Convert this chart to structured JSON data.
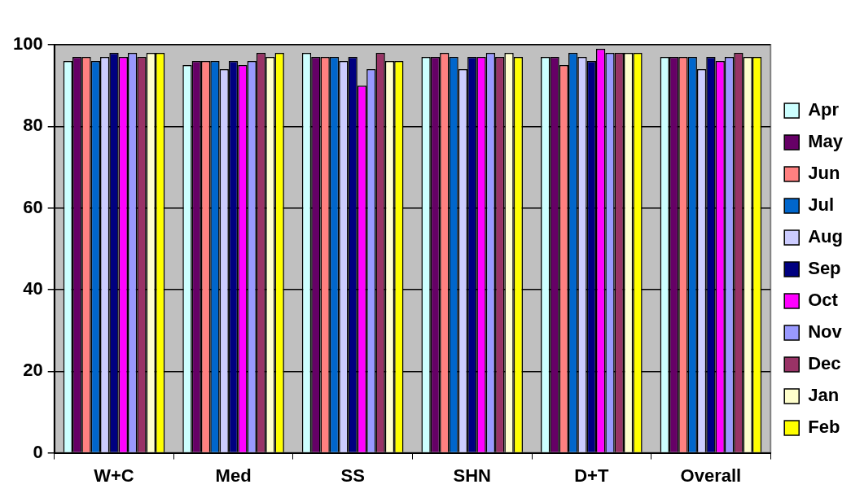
{
  "chart_data": {
    "type": "bar",
    "categories": [
      "W+C",
      "Med",
      "SS",
      "SHN",
      "D+T",
      "Overall"
    ],
    "series": [
      {
        "name": "Apr",
        "color": "#ccffff",
        "values": [
          96,
          95,
          98,
          97,
          97,
          97
        ]
      },
      {
        "name": "May",
        "color": "#660066",
        "values": [
          97,
          96,
          97,
          97,
          97,
          97
        ]
      },
      {
        "name": "Jun",
        "color": "#ff8080",
        "values": [
          97,
          96,
          97,
          98,
          95,
          97
        ]
      },
      {
        "name": "Jul",
        "color": "#0066cc",
        "values": [
          96,
          96,
          97,
          97,
          98,
          97
        ]
      },
      {
        "name": "Aug",
        "color": "#ccccff",
        "values": [
          97,
          94,
          96,
          94,
          97,
          94
        ]
      },
      {
        "name": "Sep",
        "color": "#000080",
        "values": [
          98,
          96,
          97,
          97,
          96,
          97
        ]
      },
      {
        "name": "Oct",
        "color": "#ff00ff",
        "values": [
          97,
          95,
          90,
          97,
          99,
          96
        ]
      },
      {
        "name": "Nov",
        "color": "#9999ff",
        "values": [
          98,
          96,
          94,
          98,
          98,
          97
        ]
      },
      {
        "name": "Dec",
        "color": "#993366",
        "values": [
          97,
          98,
          98,
          97,
          98,
          98
        ]
      },
      {
        "name": "Jan",
        "color": "#ffffcc",
        "values": [
          98,
          97,
          96,
          98,
          98,
          97
        ]
      },
      {
        "name": "Feb",
        "color": "#ffff00",
        "values": [
          98,
          98,
          96,
          97,
          98,
          97
        ]
      }
    ],
    "ylim": [
      0,
      100
    ],
    "yticks": [
      0,
      20,
      40,
      60,
      80,
      100
    ],
    "grid": "y",
    "legend": "right"
  }
}
